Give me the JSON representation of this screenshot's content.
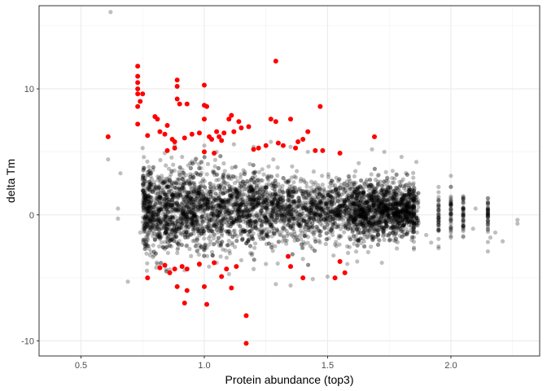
{
  "chart_data": {
    "type": "scatter",
    "title": "",
    "xlabel": "Protein abundance (top3)",
    "ylabel": "delta Tm",
    "xlim": [
      0.33,
      2.36
    ],
    "ylim": [
      -11.2,
      16.6
    ],
    "x_ticks": [
      0.5,
      1.0,
      1.5,
      2.0
    ],
    "x_tick_labels": [
      "0.5",
      "1.0",
      "1.5",
      "2.0"
    ],
    "y_ticks": [
      -10,
      0,
      10
    ],
    "y_tick_labels": [
      "-10",
      "0",
      "10"
    ],
    "grid": true,
    "legend": "none",
    "series": [
      {
        "role": "background",
        "color": "#000000",
        "opacity": 0.25,
        "description_counts": 5000,
        "points": [
          [
            0.62,
            16.1
          ],
          [
            0.61,
            4.4
          ],
          [
            0.65,
            0.5
          ],
          [
            0.65,
            -0.3
          ],
          [
            0.66,
            3.3
          ],
          [
            0.69,
            -5.3
          ],
          [
            2.27,
            -0.4
          ],
          [
            2.27,
            -0.7
          ],
          [
            2.21,
            -2.1
          ],
          [
            2.18,
            -1.4
          ],
          [
            2.15,
            -2.9
          ],
          [
            2.16,
            -1.8
          ],
          [
            2.09,
            -1.1
          ],
          [
            2.05,
            -0.9
          ],
          [
            1.95,
            -2.5
          ],
          [
            1.92,
            -2.2
          ],
          [
            1.85,
            -2.6
          ],
          [
            1.86,
            4.2
          ],
          [
            1.73,
            5.0
          ],
          [
            1.8,
            4.6
          ],
          [
            1.68,
            5.2
          ],
          [
            1.72,
            -3.8
          ],
          [
            1.62,
            -3.7
          ],
          [
            1.58,
            -3.9
          ],
          [
            0.75,
            5.3
          ],
          [
            0.76,
            -2.0
          ],
          [
            0.74,
            -1.4
          ],
          [
            0.76,
            1.6
          ],
          [
            0.75,
            2.8
          ],
          [
            0.77,
            3.4
          ],
          [
            0.78,
            -3.2
          ],
          [
            0.81,
            -3.9
          ],
          [
            0.84,
            4.9
          ],
          [
            0.88,
            5.5
          ],
          [
            0.91,
            4.6
          ],
          [
            1.0,
            5.5
          ],
          [
            1.05,
            5.0
          ],
          [
            1.12,
            5.6
          ],
          [
            1.2,
            5.4
          ],
          [
            1.27,
            5.8
          ],
          [
            1.35,
            5.4
          ],
          [
            1.42,
            5.0
          ],
          [
            1.1,
            -4.7
          ],
          [
            1.2,
            -4.3
          ],
          [
            1.29,
            -5.5
          ],
          [
            1.35,
            -5.6
          ],
          [
            1.44,
            -5.1
          ],
          [
            1.5,
            -4.9
          ],
          [
            0.92,
            -4.4
          ],
          [
            0.98,
            -4.0
          ],
          [
            1.05,
            -3.8
          ],
          [
            1.15,
            -3.6
          ],
          [
            1.25,
            -3.9
          ],
          [
            1.4,
            -3.5
          ],
          [
            2.0,
            3.1
          ],
          [
            2.05,
            1.2
          ],
          [
            2.1,
            0.5
          ],
          [
            1.95,
            1.8
          ],
          [
            1.9,
            -1.6
          ],
          [
            2.0,
            -1.8
          ]
        ]
      },
      {
        "role": "highlight",
        "color": "#ff0000",
        "opacity": 1.0,
        "points": [
          [
            0.61,
            6.2
          ],
          [
            0.73,
            11.8
          ],
          [
            0.73,
            11.0
          ],
          [
            0.73,
            10.5
          ],
          [
            0.73,
            10.0
          ],
          [
            0.73,
            9.6
          ],
          [
            0.74,
            9.0
          ],
          [
            0.73,
            8.6
          ],
          [
            0.73,
            7.2
          ],
          [
            0.75,
            9.6
          ],
          [
            0.77,
            6.3
          ],
          [
            0.8,
            7.8
          ],
          [
            0.81,
            7.6
          ],
          [
            0.82,
            6.6
          ],
          [
            0.84,
            6.4
          ],
          [
            0.85,
            7.1
          ],
          [
            0.87,
            6.0
          ],
          [
            0.88,
            5.8
          ],
          [
            0.89,
            10.7
          ],
          [
            0.89,
            10.2
          ],
          [
            0.89,
            9.2
          ],
          [
            0.9,
            8.8
          ],
          [
            0.93,
            8.8
          ],
          [
            0.88,
            5.3
          ],
          [
            0.85,
            5.1
          ],
          [
            0.92,
            6.1
          ],
          [
            0.95,
            6.4
          ],
          [
            0.98,
            6.5
          ],
          [
            1.0,
            10.3
          ],
          [
            1.0,
            8.7
          ],
          [
            1.01,
            8.6
          ],
          [
            1.0,
            7.6
          ],
          [
            1.02,
            6.2
          ],
          [
            1.03,
            6.0
          ],
          [
            1.05,
            6.6
          ],
          [
            1.06,
            6.2
          ],
          [
            1.07,
            5.9
          ],
          [
            1.08,
            6.5
          ],
          [
            1.1,
            7.6
          ],
          [
            1.11,
            7.9
          ],
          [
            1.12,
            6.6
          ],
          [
            1.14,
            7.4
          ],
          [
            1.15,
            6.9
          ],
          [
            1.18,
            7.0
          ],
          [
            1.2,
            5.2
          ],
          [
            1.22,
            5.3
          ],
          [
            1.25,
            5.5
          ],
          [
            1.27,
            7.6
          ],
          [
            1.29,
            12.2
          ],
          [
            1.29,
            7.4
          ],
          [
            1.3,
            5.7
          ],
          [
            1.32,
            5.5
          ],
          [
            1.35,
            7.6
          ],
          [
            1.37,
            5.3
          ],
          [
            1.38,
            5.8
          ],
          [
            1.4,
            6.0
          ],
          [
            1.42,
            6.6
          ],
          [
            1.45,
            5.1
          ],
          [
            1.47,
            8.6
          ],
          [
            1.48,
            5.1
          ],
          [
            1.55,
            4.9
          ],
          [
            1.69,
            6.2
          ],
          [
            1.04,
            4.9
          ],
          [
            1.0,
            5.0
          ],
          [
            0.77,
            -5.0
          ],
          [
            0.82,
            -4.2
          ],
          [
            0.84,
            -4.0
          ],
          [
            0.86,
            -4.6
          ],
          [
            0.88,
            -4.3
          ],
          [
            0.89,
            -5.7
          ],
          [
            0.91,
            -4.1
          ],
          [
            0.92,
            -7.0
          ],
          [
            0.93,
            -6.0
          ],
          [
            0.93,
            -4.3
          ],
          [
            0.98,
            -3.9
          ],
          [
            1.0,
            -5.7
          ],
          [
            1.01,
            -7.1
          ],
          [
            1.04,
            -3.8
          ],
          [
            1.07,
            -4.9
          ],
          [
            1.09,
            -4.3
          ],
          [
            1.11,
            -5.8
          ],
          [
            1.13,
            -4.1
          ],
          [
            1.17,
            -8.0
          ],
          [
            1.17,
            -10.2
          ],
          [
            1.34,
            -3.3
          ],
          [
            1.35,
            -4.1
          ],
          [
            1.4,
            -5.0
          ],
          [
            1.53,
            -5.0
          ],
          [
            1.55,
            -3.7
          ],
          [
            1.57,
            -4.6
          ]
        ]
      }
    ]
  }
}
